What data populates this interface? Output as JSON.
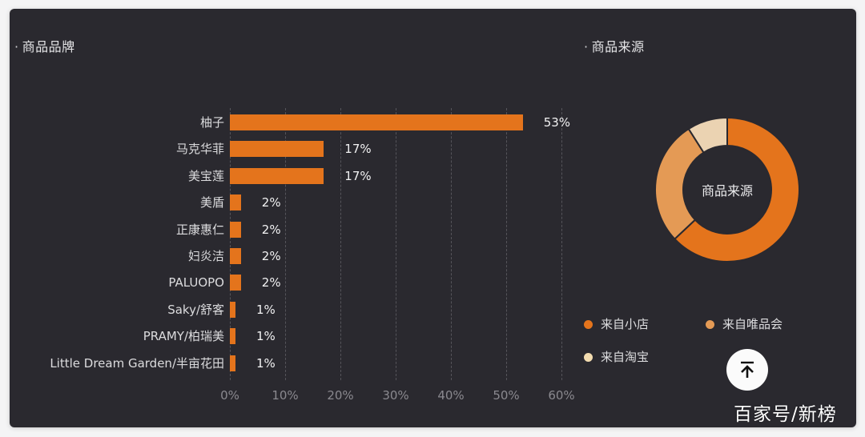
{
  "brand_section": {
    "bullet": "·",
    "title": "商品品牌"
  },
  "source_section": {
    "bullet": "·",
    "title": "商品来源"
  },
  "colors": {
    "panel_bg": "#2a292f",
    "bar": "#e4741c",
    "donut_primary": "#e4741c",
    "donut_secondary": "#e49a55",
    "donut_tertiary": "#ebd3b2",
    "grid": "#55545a"
  },
  "chart_data": [
    {
      "type": "bar",
      "orientation": "horizontal",
      "title": "商品品牌",
      "categories": [
        "柚子",
        "马克华菲",
        "美宝莲",
        "美盾",
        "正康惠仁",
        "妇炎洁",
        "PALUOPO",
        "Saky/舒客",
        "PRAMY/柏瑞美",
        "Little Dream Garden/半亩花田"
      ],
      "values": [
        53,
        17,
        17,
        2,
        2,
        2,
        2,
        1,
        1,
        1
      ],
      "value_labels": [
        "53%",
        "17%",
        "17%",
        "2%",
        "2%",
        "2%",
        "2%",
        "1%",
        "1%",
        "1%"
      ],
      "xlabel": "",
      "ylabel": "",
      "xlim": [
        0,
        60
      ],
      "x_ticks": [
        "0%",
        "10%",
        "20%",
        "30%",
        "40%",
        "50%",
        "60%"
      ],
      "grid": true,
      "grid_style": "dashed vertical"
    },
    {
      "type": "pie",
      "donut": true,
      "title": "商品来源",
      "center_label": "商品来源",
      "categories": [
        "来自小店",
        "来自唯品会",
        "来自淘宝"
      ],
      "values": [
        63,
        28,
        9
      ],
      "colors": [
        "#e4741c",
        "#e49a55",
        "#ebd3b2"
      ],
      "legend_position": "bottom"
    }
  ],
  "legend": [
    {
      "label": "来自小店",
      "color": "#e4741c"
    },
    {
      "label": "来自唯品会",
      "color": "#e49a55"
    },
    {
      "label": "来自淘宝",
      "color": "#f3dcb0"
    }
  ],
  "back_to_top": {
    "icon": "arrow-up-to-line"
  },
  "watermark": "百家号/新榜"
}
